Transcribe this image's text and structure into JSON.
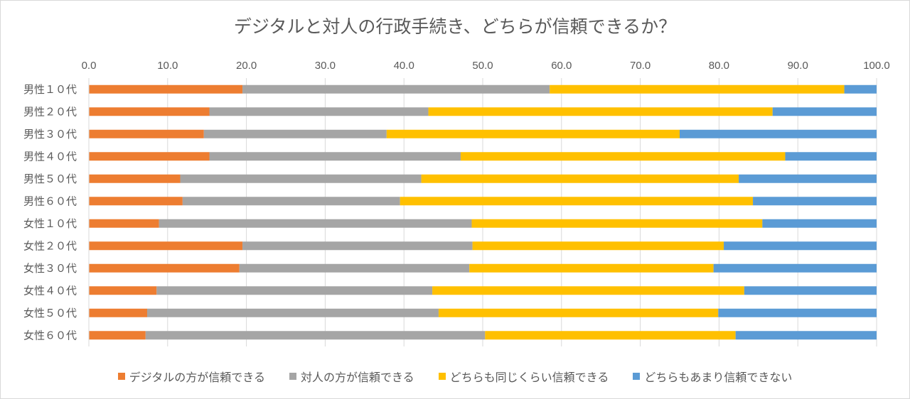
{
  "chart_data": {
    "type": "bar",
    "orientation": "horizontal",
    "stacked": true,
    "title": "デジタルと対人の行政手続き、どちらが信頼できるか？",
    "xlim": [
      0,
      100
    ],
    "xticks": [
      "0.0",
      "10.0",
      "20.0",
      "30.0",
      "40.0",
      "50.0",
      "60.0",
      "70.0",
      "80.0",
      "90.0",
      "100.0"
    ],
    "xaxis_position": "top",
    "grid": true,
    "legend_position": "bottom",
    "categories": [
      "男性１０代",
      "男性２０代",
      "男性３０代",
      "男性４０代",
      "男性５０代",
      "男性６０代",
      "女性１０代",
      "女性２０代",
      "女性３０代",
      "女性４０代",
      "女性５０代",
      "女性６０代"
    ],
    "series": [
      {
        "name": "デジタルの方が信頼できる",
        "color": "#ED7D31",
        "values": [
          19.5,
          15.3,
          14.6,
          15.3,
          11.6,
          11.9,
          8.9,
          19.5,
          19.1,
          8.6,
          7.4,
          7.2
        ]
      },
      {
        "name": "対人の方が信頼できる",
        "color": "#A5A5A5",
        "values": [
          39.0,
          27.8,
          23.2,
          31.9,
          30.6,
          27.6,
          39.7,
          29.2,
          29.2,
          35.0,
          37.0,
          43.1
        ]
      },
      {
        "name": "どちらも同じくらい信頼できる",
        "color": "#FFC000",
        "values": [
          37.4,
          43.7,
          37.2,
          41.2,
          40.3,
          44.8,
          36.9,
          31.9,
          31.0,
          39.6,
          35.5,
          31.8
        ]
      },
      {
        "name": "どちらもあまり信頼できない",
        "color": "#5B9BD5",
        "values": [
          4.1,
          13.2,
          25.0,
          11.6,
          17.5,
          15.7,
          14.5,
          19.4,
          20.7,
          16.8,
          20.1,
          17.9
        ]
      }
    ]
  }
}
